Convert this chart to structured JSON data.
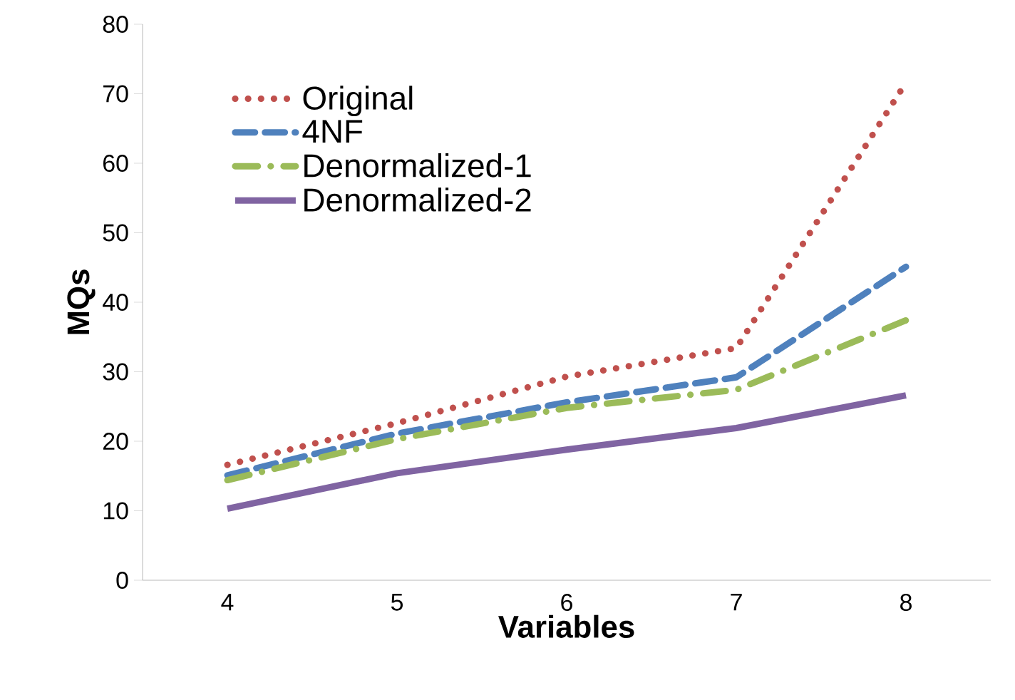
{
  "chart_data": {
    "type": "line",
    "xlabel": "Variables",
    "ylabel": "MQs",
    "categories": [
      "4",
      "5",
      "6",
      "7",
      "8"
    ],
    "ylim": [
      0,
      80
    ],
    "yticks": [
      0,
      10,
      20,
      30,
      40,
      50,
      60,
      70,
      80
    ],
    "grid": false,
    "legend": "top left",
    "series": [
      {
        "name": "Original",
        "color": "#c0504d",
        "line_style": "dotted",
        "values": [
          16.6,
          22.6,
          29.3,
          33.4,
          71.6
        ]
      },
      {
        "name": "4NF",
        "color": "#4f81bd",
        "line_style": "dashed",
        "values": [
          15.1,
          21.1,
          25.6,
          29.2,
          45.1
        ]
      },
      {
        "name": "Denormalized-1",
        "color": "#9bbb59",
        "line_style": "dashdot",
        "values": [
          14.4,
          20.3,
          24.8,
          27.4,
          37.4
        ]
      },
      {
        "name": "Denormalized-2",
        "color": "#8064a2",
        "line_style": "solid",
        "values": [
          10.3,
          15.4,
          18.8,
          21.9,
          26.6
        ]
      }
    ]
  }
}
